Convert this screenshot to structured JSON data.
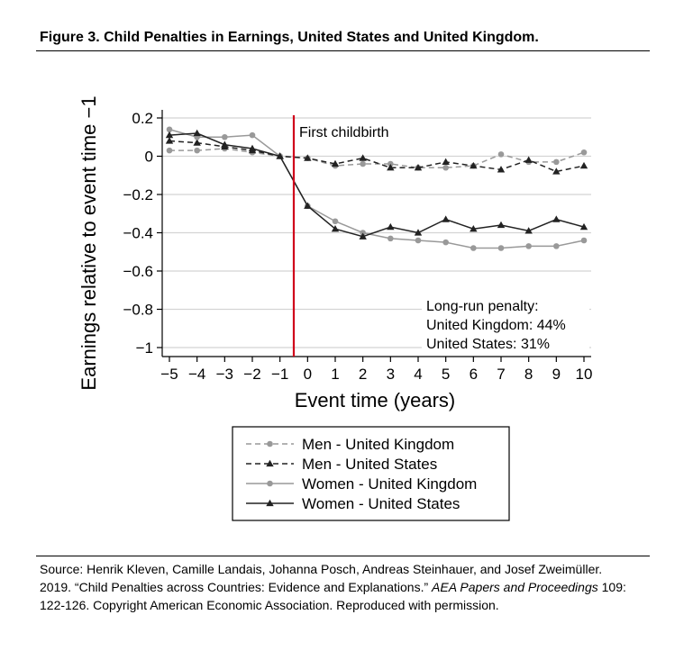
{
  "figure": {
    "title": "Figure 3. Child Penalties in Earnings, United States and United Kingdom.",
    "source_prefix": "Source: Henrik Kleven, Camille Landais, Johanna Posch, Andreas Steinhauer, and Josef Zweimüller. 2019. “Child Penalties across Countries: Evidence and Explanations.” ",
    "source_italic": "AEA Papers and Proceedings",
    "source_suffix": " 109: 122-126. Copyright American Economic Association. Reproduced with permission."
  },
  "chart_data": {
    "type": "line",
    "title": "",
    "xlabel": "Event time (years)",
    "ylabel": "Earnings relative to event time −1",
    "x": [
      -5,
      -4,
      -3,
      -2,
      -1,
      0,
      1,
      2,
      3,
      4,
      5,
      6,
      7,
      8,
      9,
      10
    ],
    "xlim": [
      -5,
      10
    ],
    "ylim": [
      -1,
      0.2
    ],
    "x_tick_labels": [
      "−5",
      "−4",
      "−3",
      "−2",
      "−1",
      "0",
      "1",
      "2",
      "3",
      "4",
      "5",
      "6",
      "7",
      "8",
      "9",
      "10"
    ],
    "y_ticks": [
      0.2,
      0,
      -0.2,
      -0.4,
      -0.6,
      -0.8,
      -1
    ],
    "y_tick_labels": [
      "0.2",
      "0",
      "−0.2",
      "−0.4",
      "−0.6",
      "−0.8",
      "−1"
    ],
    "grid": true,
    "event_line": {
      "x": -0.5,
      "label": "First childbirth",
      "color": "#d0021b"
    },
    "annotation": [
      "Long-run penalty:",
      "United Kingdom:  44%",
      "United States:  31%"
    ],
    "legend_position": "bottom",
    "series": [
      {
        "name": "Men - United Kingdom",
        "style": "dashed",
        "marker": "circle",
        "color": "#999999",
        "values": [
          0.03,
          0.03,
          0.04,
          0.02,
          0,
          -0.01,
          -0.05,
          -0.04,
          -0.04,
          -0.06,
          -0.06,
          -0.05,
          0.01,
          -0.03,
          -0.03,
          0.02
        ]
      },
      {
        "name": "Men - United States",
        "style": "dashed",
        "marker": "triangle",
        "color": "#222222",
        "values": [
          0.08,
          0.07,
          0.05,
          0.03,
          0,
          -0.01,
          -0.04,
          -0.01,
          -0.06,
          -0.06,
          -0.03,
          -0.05,
          -0.07,
          -0.02,
          -0.08,
          -0.05
        ]
      },
      {
        "name": "Women - United Kingdom",
        "style": "solid",
        "marker": "circle",
        "color": "#999999",
        "values": [
          0.14,
          0.1,
          0.1,
          0.11,
          0,
          -0.26,
          -0.34,
          -0.4,
          -0.43,
          -0.44,
          -0.45,
          -0.48,
          -0.48,
          -0.47,
          -0.47,
          -0.44
        ]
      },
      {
        "name": "Women - United States",
        "style": "solid",
        "marker": "triangle",
        "color": "#222222",
        "values": [
          0.11,
          0.12,
          0.06,
          0.04,
          0,
          -0.26,
          -0.38,
          -0.42,
          -0.37,
          -0.4,
          -0.33,
          -0.38,
          -0.36,
          -0.39,
          -0.33,
          -0.37
        ]
      }
    ]
  }
}
